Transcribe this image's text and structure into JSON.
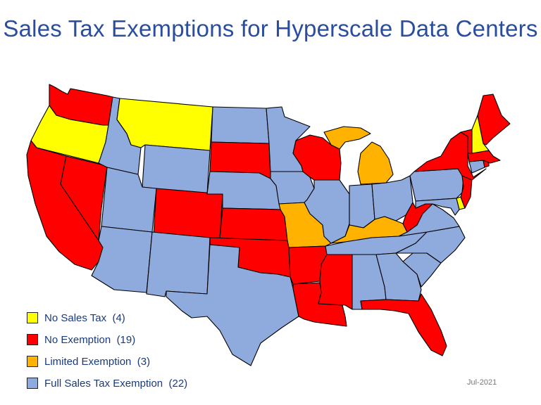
{
  "title": "Sales Tax Exemptions for Hyperscale Data Centers",
  "date": "Jul-2021",
  "colors": {
    "none": "#ffff00",
    "no_exemption": "#ff0000",
    "limited": "#ffb300",
    "full": "#8faadc"
  },
  "legend": [
    {
      "key": "none",
      "label": "No Sales Tax",
      "count": "(4)"
    },
    {
      "key": "no_exemption",
      "label": "No Exemption",
      "count": "(19)"
    },
    {
      "key": "limited",
      "label": "Limited Exemption",
      "count": "(3)"
    },
    {
      "key": "full",
      "label": "Full Sales Tax Exemption",
      "count": "(22)"
    }
  ],
  "states": {
    "WA": "no_exemption",
    "OR": "none",
    "CA": "no_exemption",
    "NV": "no_exemption",
    "ID": "full",
    "MT": "none",
    "WY": "full",
    "UT": "full",
    "AZ": "full",
    "CO": "no_exemption",
    "NM": "full",
    "ND": "full",
    "SD": "no_exemption",
    "NE": "full",
    "KS": "no_exemption",
    "OK": "no_exemption",
    "TX": "full",
    "MN": "full",
    "IA": "full",
    "MO": "limited",
    "AR": "no_exemption",
    "LA": "no_exemption",
    "WI": "no_exemption",
    "IL": "full",
    "MI": "limited",
    "IN": "full",
    "OH": "full",
    "KY": "limited",
    "TN": "full",
    "MS": "no_exemption",
    "AL": "full",
    "GA": "full",
    "FL": "no_exemption",
    "SC": "full",
    "NC": "full",
    "VA": "full",
    "WV": "no_exemption",
    "MD": "full",
    "DE": "none",
    "PA": "full",
    "NJ": "no_exemption",
    "NY": "no_exemption",
    "CT": "full",
    "RI": "no_exemption",
    "MA": "no_exemption",
    "VT": "no_exemption",
    "NH": "none",
    "ME": "no_exemption"
  }
}
